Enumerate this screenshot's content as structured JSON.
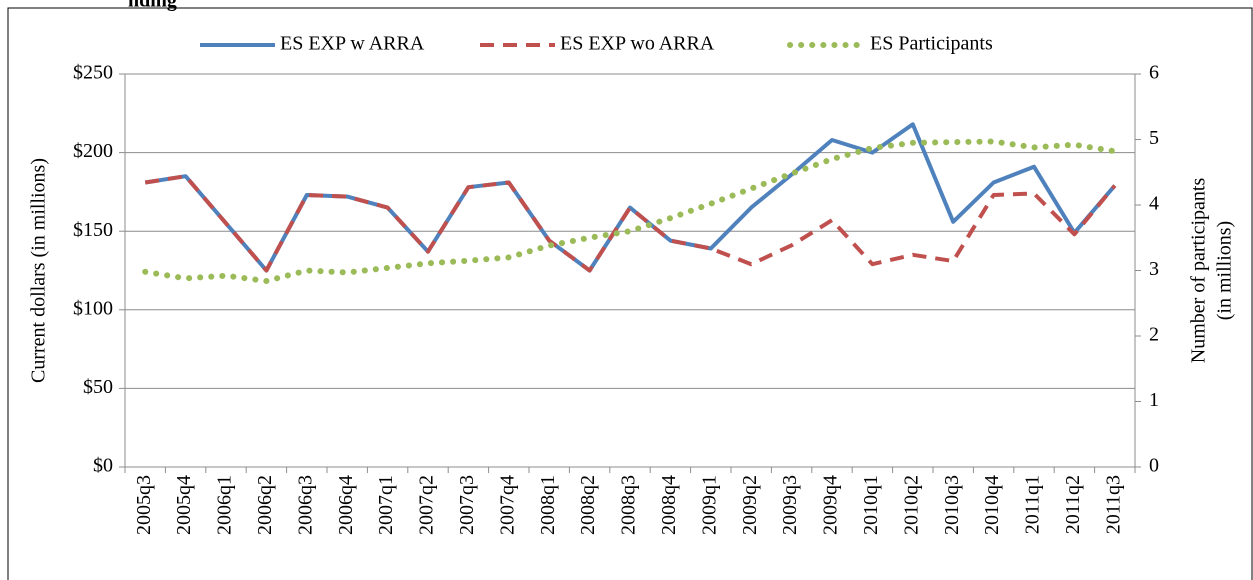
{
  "chart_data": {
    "type": "line",
    "title": "nding",
    "ylabel": "Current dollars (in millions)",
    "y2label": [
      "Number of participants",
      "(in millions)"
    ],
    "categories": [
      "2005q3",
      "2005q4",
      "2006q1",
      "2006q2",
      "2006q3",
      "2006q4",
      "2007q1",
      "2007q2",
      "2007q3",
      "2007q4",
      "2008q1",
      "2008q2",
      "2008q3",
      "2008q4",
      "2009q1",
      "2009q2",
      "2009q3",
      "2009q4",
      "2010q1",
      "2010q2",
      "2010q3",
      "2010q4",
      "2011q1",
      "2011q2",
      "2011q3"
    ],
    "series": [
      {
        "name": "ES EXP w ARRA",
        "color": "#4f81bd",
        "style": "solid",
        "values": [
          181,
          185,
          155,
          125,
          173,
          172,
          165,
          137,
          178,
          181,
          144,
          125,
          165,
          144,
          139,
          165,
          186,
          208,
          200,
          218,
          156,
          181,
          191,
          149,
          179
        ]
      },
      {
        "name": "ES EXP wo ARRA",
        "color": "#c0504d",
        "style": "dashed",
        "values": [
          181,
          185,
          155,
          125,
          173,
          172,
          165,
          137,
          178,
          181,
          144,
          125,
          165,
          144,
          139,
          129,
          141,
          157,
          129,
          135,
          131,
          173,
          174,
          148,
          179
        ]
      },
      {
        "name": "ES Participants",
        "color": "#9bbb59",
        "style": "dotted",
        "axis": "y2",
        "values": [
          2.98,
          2.88,
          2.92,
          2.84,
          3.0,
          2.97,
          3.04,
          3.11,
          3.15,
          3.2,
          3.38,
          3.5,
          3.6,
          3.8,
          4.02,
          4.25,
          4.48,
          4.7,
          4.87,
          4.95,
          4.96,
          4.97,
          4.88,
          4.92,
          4.82
        ]
      }
    ],
    "ylim": [
      0,
      250
    ],
    "yticks": [
      {
        "value": 0,
        "label": "$0"
      },
      {
        "value": 50,
        "label": "$50"
      },
      {
        "value": 100,
        "label": "$100"
      },
      {
        "value": 150,
        "label": "$150"
      },
      {
        "value": 200,
        "label": "$200"
      },
      {
        "value": 250,
        "label": "$250"
      }
    ],
    "y2lim": [
      0,
      6
    ],
    "y2ticks": [
      0,
      1,
      2,
      3,
      4,
      5,
      6
    ],
    "grid": true,
    "legend": "top"
  }
}
